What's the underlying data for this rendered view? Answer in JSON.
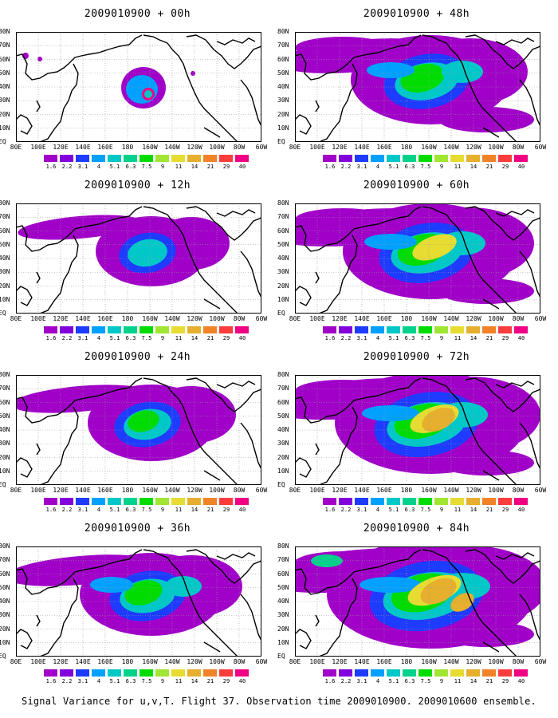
{
  "panels": [
    {
      "title": "2009010900 + 00h",
      "intensity": 0
    },
    {
      "title": "2009010900 + 48h",
      "intensity": 4
    },
    {
      "title": "2009010900 + 12h",
      "intensity": 1
    },
    {
      "title": "2009010900 + 60h",
      "intensity": 5
    },
    {
      "title": "2009010900 + 24h",
      "intensity": 2
    },
    {
      "title": "2009010900 + 72h",
      "intensity": 6
    },
    {
      "title": "2009010900 + 36h",
      "intensity": 3
    },
    {
      "title": "2009010900 + 84h",
      "intensity": 7
    }
  ],
  "lat_labels": [
    "80N",
    "70N",
    "60N",
    "50N",
    "40N",
    "30N",
    "20N",
    "10N",
    "EQ"
  ],
  "lon_labels": [
    "80E",
    "100E",
    "120E",
    "140E",
    "160E",
    "180",
    "160W",
    "140W",
    "120W",
    "100W",
    "80W",
    "60W"
  ],
  "colorbar": {
    "levels": [
      "1.6",
      "2.2",
      "3.1",
      "4",
      "5.1",
      "6.3",
      "7.5",
      "9",
      "11",
      "14",
      "21",
      "29",
      "40"
    ],
    "colors": [
      "#a000c8",
      "#8200dc",
      "#1e3cff",
      "#00a0ff",
      "#00c8c8",
      "#00d28c",
      "#00dc00",
      "#a0e632",
      "#e6dc32",
      "#e6af2d",
      "#f08228",
      "#fa3c3c",
      "#f00082"
    ]
  },
  "caption": "Signal Variance for u,v,T. Flight 37. Observation time 2009010900. 2009010600 ensemble."
}
